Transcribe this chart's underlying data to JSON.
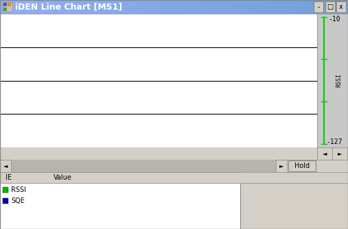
{
  "title": "iDEN Line Chart [MS1]",
  "title_bar_color_left": "#6ea0d0",
  "title_bar_color_right": "#4060a0",
  "title_text_color": "#ffffff",
  "title_fontsize": 9,
  "chart_bg_color": "#ffffff",
  "scrollbar_bg": "#c8c8c8",
  "y_top_label": "-10",
  "y_bottom_label": "-127",
  "y_side_label": "RSSI",
  "grid_line_color": "#000000",
  "bottom_panel_bg": "#d4d0c8",
  "table_bg": "#ffffff",
  "table_header_bg": "#d4d0c8",
  "table_header": [
    "IE",
    "Value"
  ],
  "legend_items": [
    {
      "label": "RSSI",
      "color": "#00bb00"
    },
    {
      "label": "SQE",
      "color": "#0000bb"
    }
  ],
  "green_line_color": "#00cc00",
  "window_bg": "#d4d0c8",
  "hold_button_text": "Hold",
  "figw": 5.07,
  "figh": 3.34,
  "dpi": 100
}
